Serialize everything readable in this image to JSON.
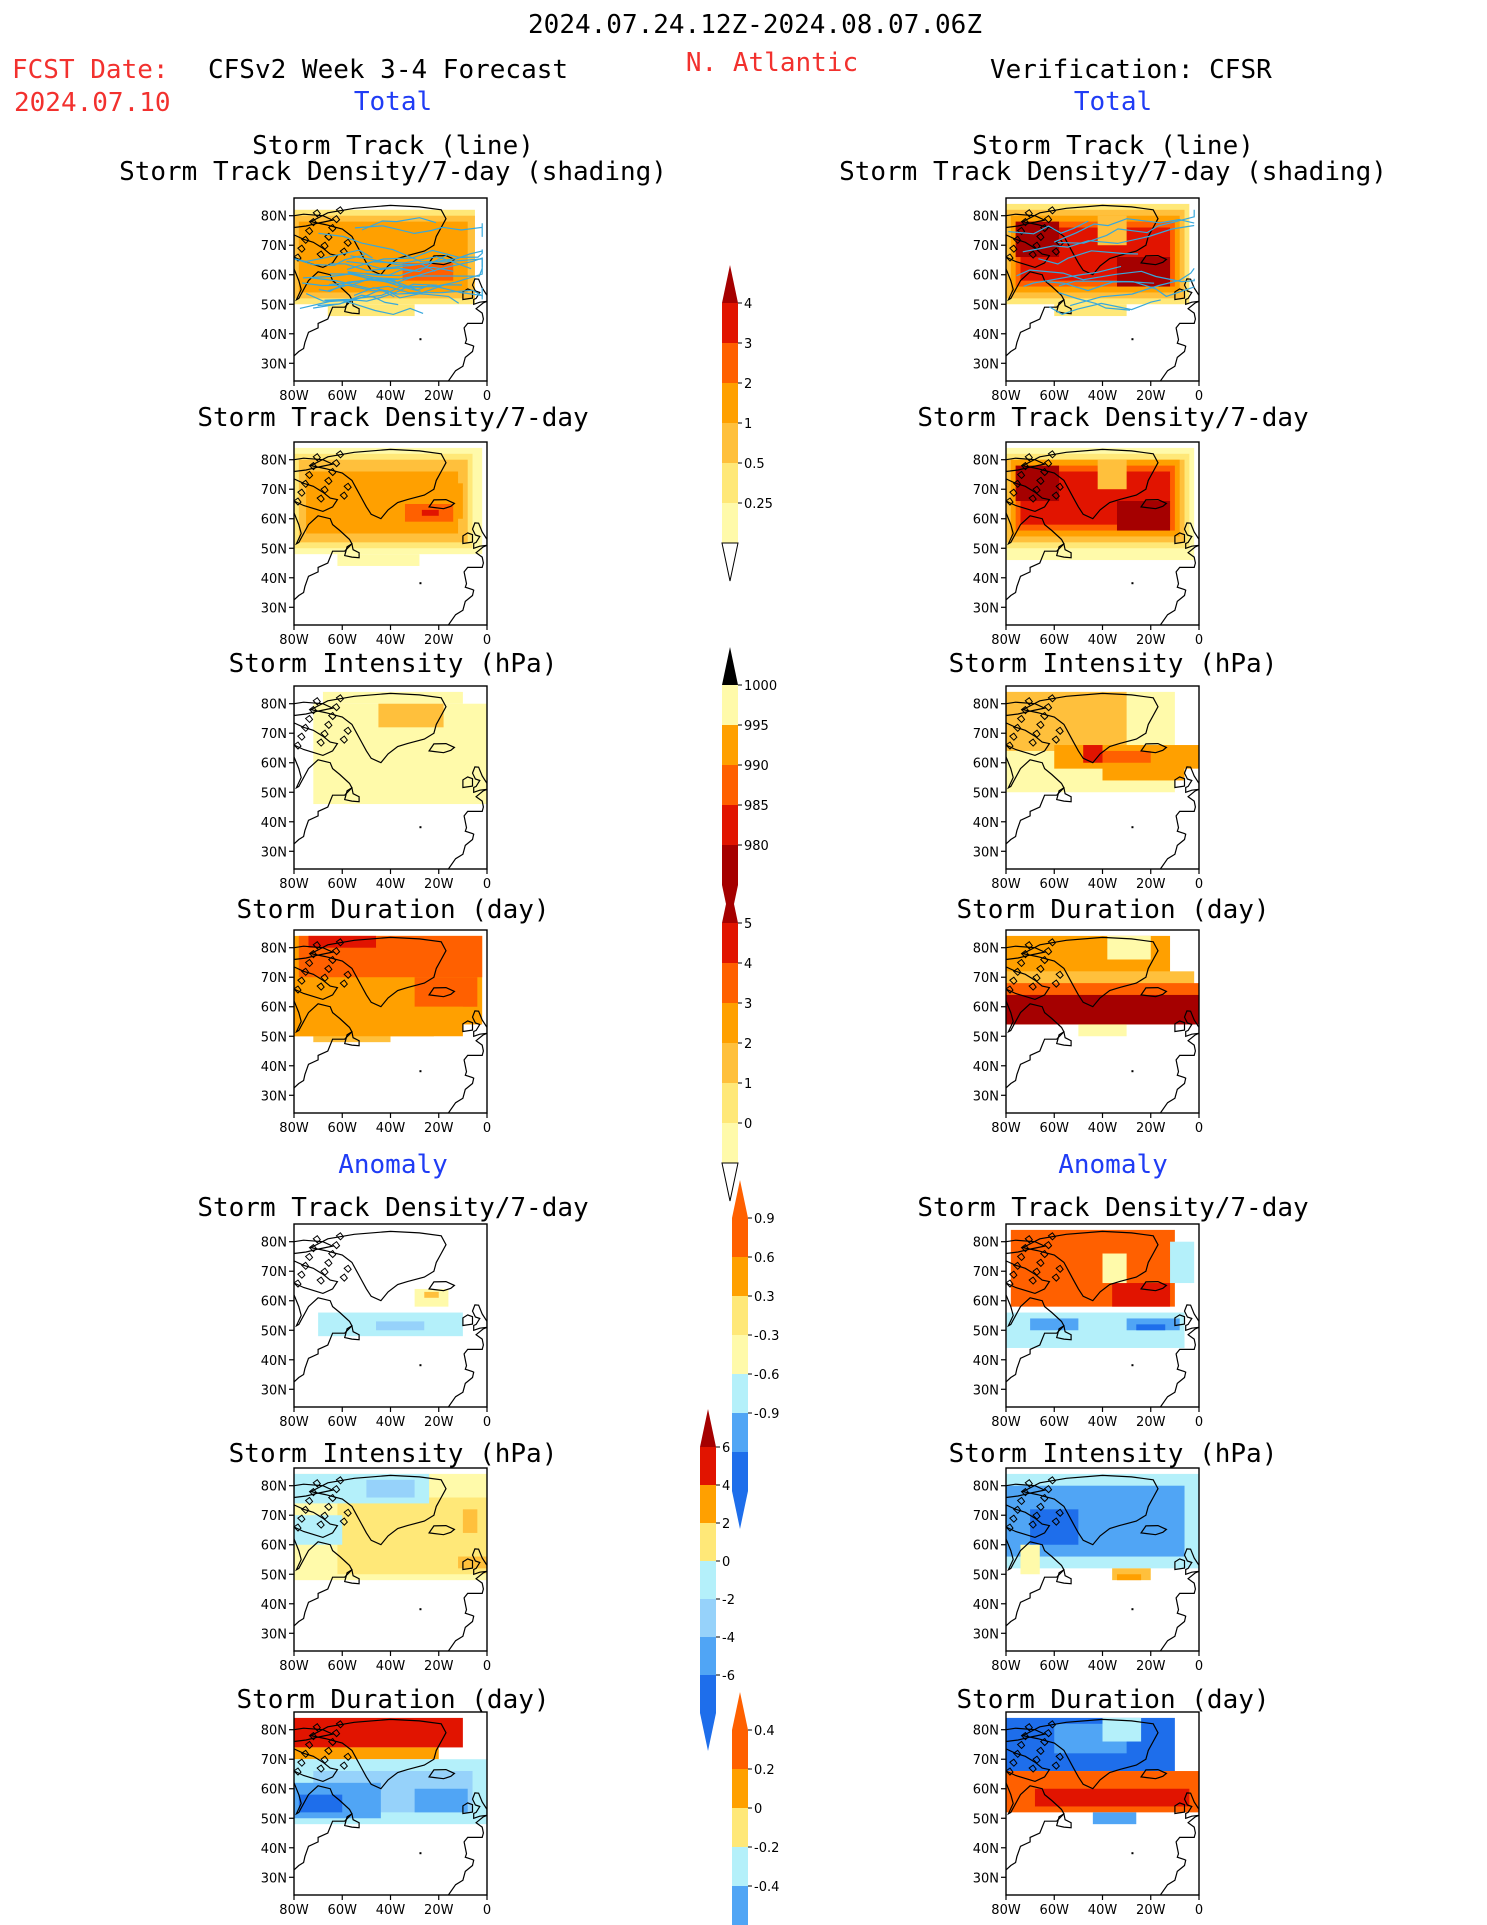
{
  "header": {
    "period": "2024.07.24.12Z-2024.08.07.06Z",
    "fcst_label": "FCST Date:",
    "fcst_date": "2024.07.10",
    "model": "CFSv2 Week 3-4 Forecast",
    "region": "N. Atlantic",
    "verification": "Verification: CFSR",
    "left_total": "Total",
    "right_total": "Total",
    "left_anomaly": "Anomaly",
    "right_anomaly": "Anomaly"
  },
  "panel_titles": {
    "track_line": "Storm Track (line)",
    "track_shading": "Storm Track Density/7-day (shading)",
    "density": "Storm Track Density/7-day",
    "intensity": "Storm Intensity (hPa)",
    "duration": "Storm Duration (day)"
  },
  "colors": {
    "pale_yellow": "#fffaaa",
    "yellow": "#ffe878",
    "light_orange": "#ffc03c",
    "orange": "#ffa000",
    "dark_orange": "#ff6000",
    "red": "#e11400",
    "dark_red": "#a50000",
    "light_blue": "#b4f0fa",
    "sky_blue": "#96d2fa",
    "blue": "#50a5f5",
    "dark_blue": "#1e6eeb",
    "track_line": "#38a8dc"
  },
  "chart_data": [
    {
      "type": "heatmap",
      "panel": "forecast-total-storm-track",
      "title": "Storm Track (line)",
      "subtitle": "Storm Track Density/7-day (shading)",
      "x_ticks": [
        "80W",
        "60W",
        "40W",
        "20W",
        "0"
      ],
      "y_ticks": [
        "80N",
        "70N",
        "60N",
        "50N",
        "40N",
        "30N"
      ],
      "xlim": [
        -80,
        0
      ],
      "ylim": [
        24,
        86
      ],
      "levels": [
        0.25,
        0.5,
        1,
        2,
        3,
        4
      ]
    },
    {
      "type": "heatmap",
      "panel": "forecast-total-density",
      "title": "Storm Track Density/7-day",
      "x_ticks": [
        "80W",
        "60W",
        "40W",
        "20W",
        "0"
      ],
      "y_ticks": [
        "80N",
        "70N",
        "60N",
        "50N",
        "40N",
        "30N"
      ],
      "xlim": [
        -80,
        0
      ],
      "ylim": [
        24,
        86
      ],
      "levels": [
        0.25,
        0.5,
        1,
        2,
        3,
        4
      ]
    },
    {
      "type": "heatmap",
      "panel": "forecast-total-intensity",
      "title": "Storm Intensity (hPa)",
      "x_ticks": [
        "80W",
        "60W",
        "40W",
        "20W",
        "0"
      ],
      "y_ticks": [
        "80N",
        "70N",
        "60N",
        "50N",
        "40N",
        "30N"
      ],
      "xlim": [
        -80,
        0
      ],
      "ylim": [
        24,
        86
      ],
      "levels": [
        1000,
        995,
        990,
        985,
        980
      ]
    },
    {
      "type": "heatmap",
      "panel": "forecast-total-duration",
      "title": "Storm Duration (day)",
      "x_ticks": [
        "80W",
        "60W",
        "40W",
        "20W",
        "0"
      ],
      "y_ticks": [
        "80N",
        "70N",
        "60N",
        "50N",
        "40N",
        "30N"
      ],
      "xlim": [
        -80,
        0
      ],
      "ylim": [
        24,
        86
      ],
      "levels": [
        0,
        1,
        2,
        3,
        4,
        5
      ]
    },
    {
      "type": "heatmap",
      "panel": "forecast-anomaly-density",
      "title": "Storm Track Density/7-day",
      "x_ticks": [
        "80W",
        "60W",
        "40W",
        "20W",
        "0"
      ],
      "y_ticks": [
        "80N",
        "70N",
        "60N",
        "50N",
        "40N",
        "30N"
      ],
      "xlim": [
        -80,
        0
      ],
      "ylim": [
        24,
        86
      ],
      "levels": [
        -0.9,
        -0.6,
        -0.3,
        0.3,
        0.6,
        0.9
      ]
    },
    {
      "type": "heatmap",
      "panel": "forecast-anomaly-intensity",
      "title": "Storm Intensity (hPa)",
      "x_ticks": [
        "80W",
        "60W",
        "40W",
        "20W",
        "0"
      ],
      "y_ticks": [
        "80N",
        "70N",
        "60N",
        "50N",
        "40N",
        "30N"
      ],
      "xlim": [
        -80,
        0
      ],
      "ylim": [
        24,
        86
      ],
      "levels": [
        -6,
        -4,
        -2,
        0,
        2,
        4,
        6
      ]
    },
    {
      "type": "heatmap",
      "panel": "forecast-anomaly-duration",
      "title": "Storm Duration (day)",
      "x_ticks": [
        "80W",
        "60W",
        "40W",
        "20W",
        "0"
      ],
      "y_ticks": [
        "80N",
        "70N",
        "60N",
        "50N",
        "40N",
        "30N"
      ],
      "xlim": [
        -80,
        0
      ],
      "ylim": [
        24,
        86
      ],
      "levels": [
        -0.4,
        -0.2,
        0,
        0.2,
        0.4
      ]
    },
    {
      "type": "heatmap",
      "panel": "cfsr-total-storm-track",
      "title": "Storm Track (line)",
      "subtitle": "Storm Track Density/7-day (shading)",
      "x_ticks": [
        "80W",
        "60W",
        "40W",
        "20W",
        "0"
      ],
      "y_ticks": [
        "80N",
        "70N",
        "60N",
        "50N",
        "40N",
        "30N"
      ],
      "xlim": [
        -80,
        0
      ],
      "ylim": [
        24,
        86
      ],
      "levels": [
        0.25,
        0.5,
        1,
        2,
        3,
        4
      ]
    },
    {
      "type": "heatmap",
      "panel": "cfsr-total-density",
      "title": "Storm Track Density/7-day",
      "x_ticks": [
        "80W",
        "60W",
        "40W",
        "20W",
        "0"
      ],
      "y_ticks": [
        "80N",
        "70N",
        "60N",
        "50N",
        "40N",
        "30N"
      ],
      "xlim": [
        -80,
        0
      ],
      "ylim": [
        24,
        86
      ],
      "levels": [
        0.25,
        0.5,
        1,
        2,
        3,
        4
      ]
    },
    {
      "type": "heatmap",
      "panel": "cfsr-total-intensity",
      "title": "Storm Intensity (hPa)",
      "x_ticks": [
        "80W",
        "60W",
        "40W",
        "20W",
        "0"
      ],
      "y_ticks": [
        "80N",
        "70N",
        "60N",
        "50N",
        "40N",
        "30N"
      ],
      "xlim": [
        -80,
        0
      ],
      "ylim": [
        24,
        86
      ],
      "levels": [
        1000,
        995,
        990,
        985,
        980
      ]
    },
    {
      "type": "heatmap",
      "panel": "cfsr-total-duration",
      "title": "Storm Duration (day)",
      "x_ticks": [
        "80W",
        "60W",
        "40W",
        "20W",
        "0"
      ],
      "y_ticks": [
        "80N",
        "70N",
        "60N",
        "50N",
        "40N",
        "30N"
      ],
      "xlim": [
        -80,
        0
      ],
      "ylim": [
        24,
        86
      ],
      "levels": [
        0,
        1,
        2,
        3,
        4,
        5
      ]
    },
    {
      "type": "heatmap",
      "panel": "cfsr-anomaly-density",
      "title": "Storm Track Density/7-day",
      "x_ticks": [
        "80W",
        "60W",
        "40W",
        "20W",
        "0"
      ],
      "y_ticks": [
        "80N",
        "70N",
        "60N",
        "50N",
        "40N",
        "30N"
      ],
      "xlim": [
        -80,
        0
      ],
      "ylim": [
        24,
        86
      ],
      "levels": [
        -0.9,
        -0.6,
        -0.3,
        0.3,
        0.6,
        0.9
      ]
    },
    {
      "type": "heatmap",
      "panel": "cfsr-anomaly-intensity",
      "title": "Storm Intensity (hPa)",
      "x_ticks": [
        "80W",
        "60W",
        "40W",
        "20W",
        "0"
      ],
      "y_ticks": [
        "80N",
        "70N",
        "60N",
        "50N",
        "40N",
        "30N"
      ],
      "xlim": [
        -80,
        0
      ],
      "ylim": [
        24,
        86
      ],
      "levels": [
        -6,
        -4,
        -2,
        0,
        2,
        4,
        6
      ]
    },
    {
      "type": "heatmap",
      "panel": "cfsr-anomaly-duration",
      "title": "Storm Duration (day)",
      "x_ticks": [
        "80W",
        "60W",
        "40W",
        "20W",
        "0"
      ],
      "y_ticks": [
        "80N",
        "70N",
        "60N",
        "50N",
        "40N",
        "30N"
      ],
      "xlim": [
        -80,
        0
      ],
      "ylim": [
        24,
        86
      ],
      "levels": [
        -0.4,
        -0.2,
        0,
        0.2,
        0.4
      ]
    }
  ],
  "colorbars": [
    {
      "id": "track-density-colorbar",
      "labels": [
        "4",
        "3",
        "2",
        "1",
        "0.5",
        "0.25"
      ]
    },
    {
      "id": "intensity-colorbar",
      "labels": [
        "1000",
        "995",
        "990",
        "985",
        "980"
      ]
    },
    {
      "id": "duration-colorbar",
      "labels": [
        "5",
        "4",
        "3",
        "2",
        "1",
        "0"
      ]
    },
    {
      "id": "density-anomaly-colorbar",
      "labels": [
        "0.9",
        "0.6",
        "0.3",
        "-0.3",
        "-0.6",
        "-0.9"
      ]
    },
    {
      "id": "intensity-anomaly-colorbar",
      "labels": [
        "6",
        "4",
        "2",
        "0",
        "-2",
        "-4",
        "-6"
      ]
    },
    {
      "id": "duration-anomaly-colorbar",
      "labels": [
        "0.4",
        "0.2",
        "0",
        "-0.2",
        "-0.4"
      ]
    }
  ]
}
